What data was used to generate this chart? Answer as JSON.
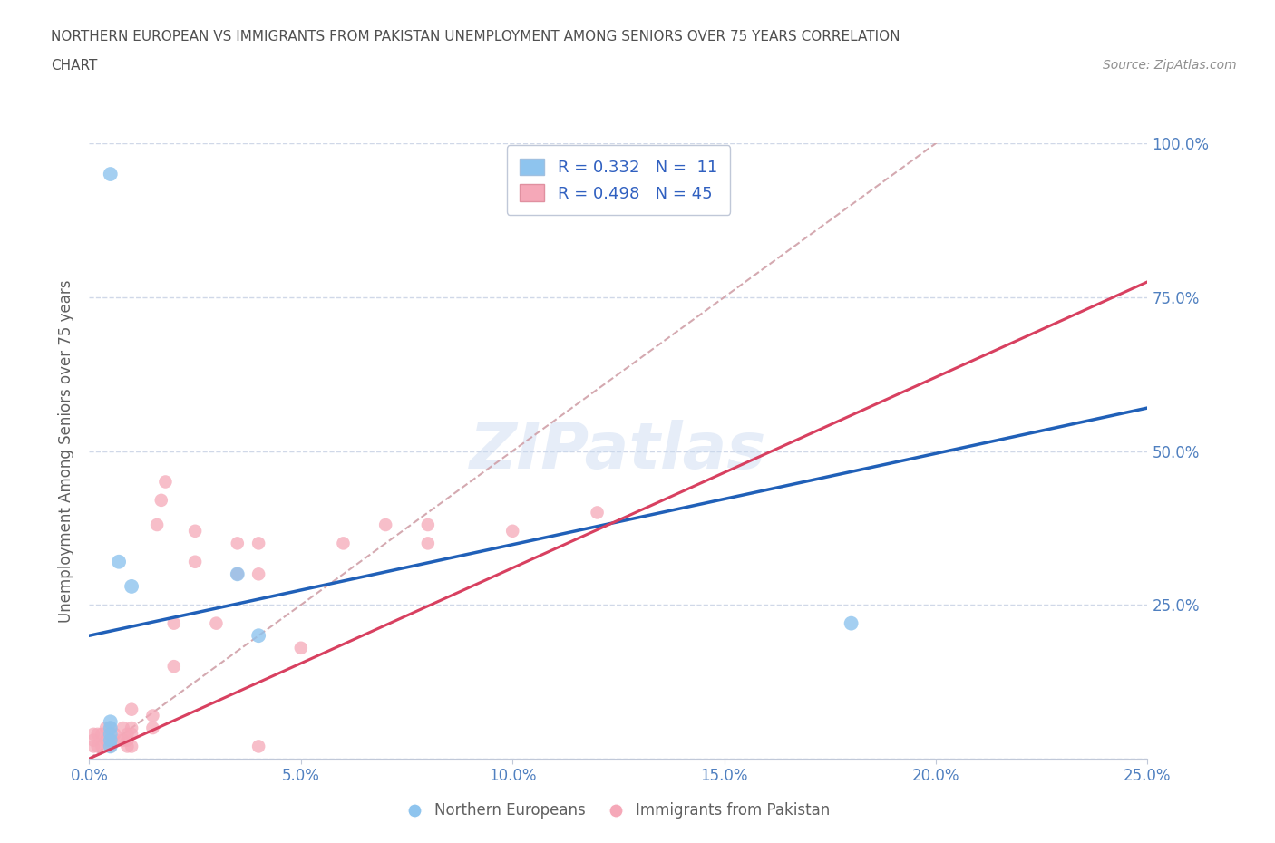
{
  "title_line1": "NORTHERN EUROPEAN VS IMMIGRANTS FROM PAKISTAN UNEMPLOYMENT AMONG SENIORS OVER 75 YEARS CORRELATION",
  "title_line2": "CHART",
  "source_text": "Source: ZipAtlas.com",
  "ylabel": "Unemployment Among Seniors over 75 years",
  "xlim": [
    0.0,
    0.25
  ],
  "ylim": [
    0.0,
    1.0
  ],
  "xticks": [
    0.0,
    0.05,
    0.1,
    0.15,
    0.2,
    0.25
  ],
  "xtick_labels": [
    "0.0%",
    "5.0%",
    "10.0%",
    "15.0%",
    "20.0%",
    "25.0%"
  ],
  "yticks": [
    0.0,
    0.25,
    0.5,
    0.75,
    1.0
  ],
  "ytick_labels": [
    "",
    "25.0%",
    "50.0%",
    "75.0%",
    "100.0%"
  ],
  "blue_color": "#8ec4ee",
  "pink_color": "#f5a8b8",
  "blue_line_color": "#2060b8",
  "pink_line_color": "#d84060",
  "diag_line_color": "#d0a0a8",
  "legend_R_blue": "R = 0.332",
  "legend_N_blue": "N =  11",
  "legend_R_pink": "R = 0.498",
  "legend_N_pink": "N = 45",
  "watermark": "ZIPatlas",
  "blue_x": [
    0.005,
    0.005,
    0.005,
    0.005,
    0.005,
    0.007,
    0.01,
    0.035,
    0.04,
    0.18,
    0.005
  ],
  "blue_y": [
    0.02,
    0.03,
    0.04,
    0.05,
    0.06,
    0.32,
    0.28,
    0.3,
    0.2,
    0.22,
    0.95
  ],
  "pink_x": [
    0.001,
    0.001,
    0.001,
    0.002,
    0.002,
    0.003,
    0.003,
    0.004,
    0.004,
    0.005,
    0.005,
    0.005,
    0.006,
    0.007,
    0.008,
    0.008,
    0.009,
    0.009,
    0.009,
    0.01,
    0.01,
    0.01,
    0.01,
    0.015,
    0.015,
    0.016,
    0.017,
    0.018,
    0.02,
    0.02,
    0.025,
    0.025,
    0.03,
    0.035,
    0.035,
    0.04,
    0.04,
    0.04,
    0.05,
    0.06,
    0.07,
    0.08,
    0.08,
    0.1,
    0.12
  ],
  "pink_y": [
    0.02,
    0.03,
    0.04,
    0.02,
    0.04,
    0.02,
    0.04,
    0.03,
    0.05,
    0.02,
    0.03,
    0.05,
    0.04,
    0.03,
    0.03,
    0.05,
    0.02,
    0.03,
    0.04,
    0.02,
    0.04,
    0.05,
    0.08,
    0.05,
    0.07,
    0.38,
    0.42,
    0.45,
    0.15,
    0.22,
    0.32,
    0.37,
    0.22,
    0.3,
    0.35,
    0.3,
    0.35,
    0.02,
    0.18,
    0.35,
    0.38,
    0.38,
    0.35,
    0.37,
    0.4
  ],
  "blue_intercept": 0.2,
  "blue_slope": 1.48,
  "pink_intercept": 0.0,
  "pink_slope": 3.1,
  "diag_slope": 5.0,
  "grid_color": "#d0d8e8",
  "bg_color": "#ffffff",
  "title_color": "#505050",
  "axis_label_color": "#606060",
  "tick_color": "#5080c0",
  "legend_text_color": "#3060c0"
}
